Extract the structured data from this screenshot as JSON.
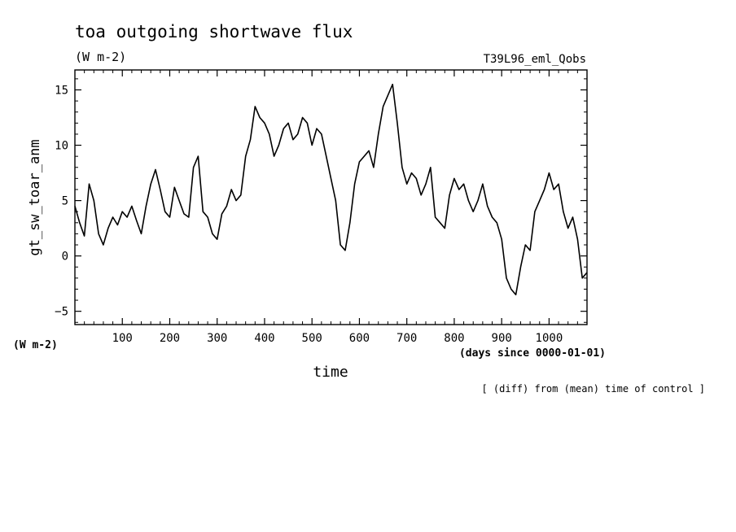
{
  "chart_data": {
    "type": "line",
    "title": "toa outgoing shortwave flux",
    "subtitle_units": "(W m-2)",
    "run_label": "T39L96_eml_Qobs",
    "ylabel": "gt_sw_toar_anm",
    "y_units_label": "(W m-2)",
    "xlabel": "time",
    "x_units_label": "(days since 0000-01-01)",
    "note": "[ (diff) from (mean) time of control ]",
    "xlim": [
      0,
      1080
    ],
    "ylim": [
      -6.2,
      16.8
    ],
    "xticks": [
      100,
      200,
      300,
      400,
      500,
      600,
      700,
      800,
      900,
      1000
    ],
    "yticks": [
      -5,
      0,
      5,
      10,
      15
    ],
    "ytick_labels": [
      "−5",
      "0",
      "5",
      "10",
      "15"
    ],
    "grid": false,
    "line_color": "#000000",
    "series": [
      {
        "x": [
          0,
          10,
          20,
          30,
          40,
          50,
          60,
          70,
          80,
          90,
          100,
          110,
          120,
          130,
          140,
          150,
          160,
          170,
          180,
          190,
          200,
          210,
          220,
          230,
          240,
          250,
          260,
          270,
          280,
          290,
          300,
          310,
          320,
          330,
          340,
          350,
          360,
          370,
          380,
          390,
          400,
          410,
          420,
          430,
          440,
          450,
          460,
          470,
          480,
          490,
          500,
          510,
          520,
          530,
          540,
          550,
          560,
          570,
          580,
          590,
          600,
          610,
          620,
          630,
          640,
          650,
          660,
          670,
          680,
          690,
          700,
          710,
          720,
          730,
          740,
          750,
          760,
          770,
          780,
          790,
          800,
          810,
          820,
          830,
          840,
          850,
          860,
          870,
          880,
          890,
          900,
          910,
          920,
          930,
          940,
          950,
          960,
          970,
          980,
          990,
          1000,
          1010,
          1020,
          1030,
          1040,
          1050,
          1060,
          1070,
          1080
        ],
        "values": [
          4.5,
          3.0,
          1.8,
          6.5,
          5.0,
          2.0,
          1.0,
          2.5,
          3.5,
          2.8,
          4.0,
          3.5,
          4.5,
          3.2,
          2.0,
          4.5,
          6.5,
          7.8,
          6.0,
          4.0,
          3.5,
          6.2,
          5.0,
          3.8,
          3.5,
          8.0,
          9.0,
          4.0,
          3.5,
          2.0,
          1.5,
          3.8,
          4.5,
          6.0,
          5.0,
          5.5,
          9.0,
          10.5,
          13.5,
          12.5,
          12.0,
          11.0,
          9.0,
          10.0,
          11.5,
          12.0,
          10.5,
          11.0,
          12.5,
          12.0,
          10.0,
          11.5,
          11.0,
          9.0,
          7.0,
          5.0,
          1.0,
          0.5,
          3.0,
          6.5,
          8.5,
          9.0,
          9.5,
          8.0,
          11.0,
          13.5,
          14.5,
          15.5,
          12.0,
          8.0,
          6.5,
          7.5,
          7.0,
          5.5,
          6.5,
          8.0,
          3.5,
          3.0,
          2.5,
          5.5,
          7.0,
          6.0,
          6.5,
          5.0,
          4.0,
          5.0,
          6.5,
          4.5,
          3.5,
          3.0,
          1.5,
          -2.0,
          -3.0,
          -3.5,
          -1.0,
          1.0,
          0.5,
          4.0,
          5.0,
          6.0,
          7.5,
          6.0,
          6.5,
          4.0,
          2.5,
          3.5,
          1.5,
          -2.0,
          -1.5
        ]
      }
    ]
  }
}
